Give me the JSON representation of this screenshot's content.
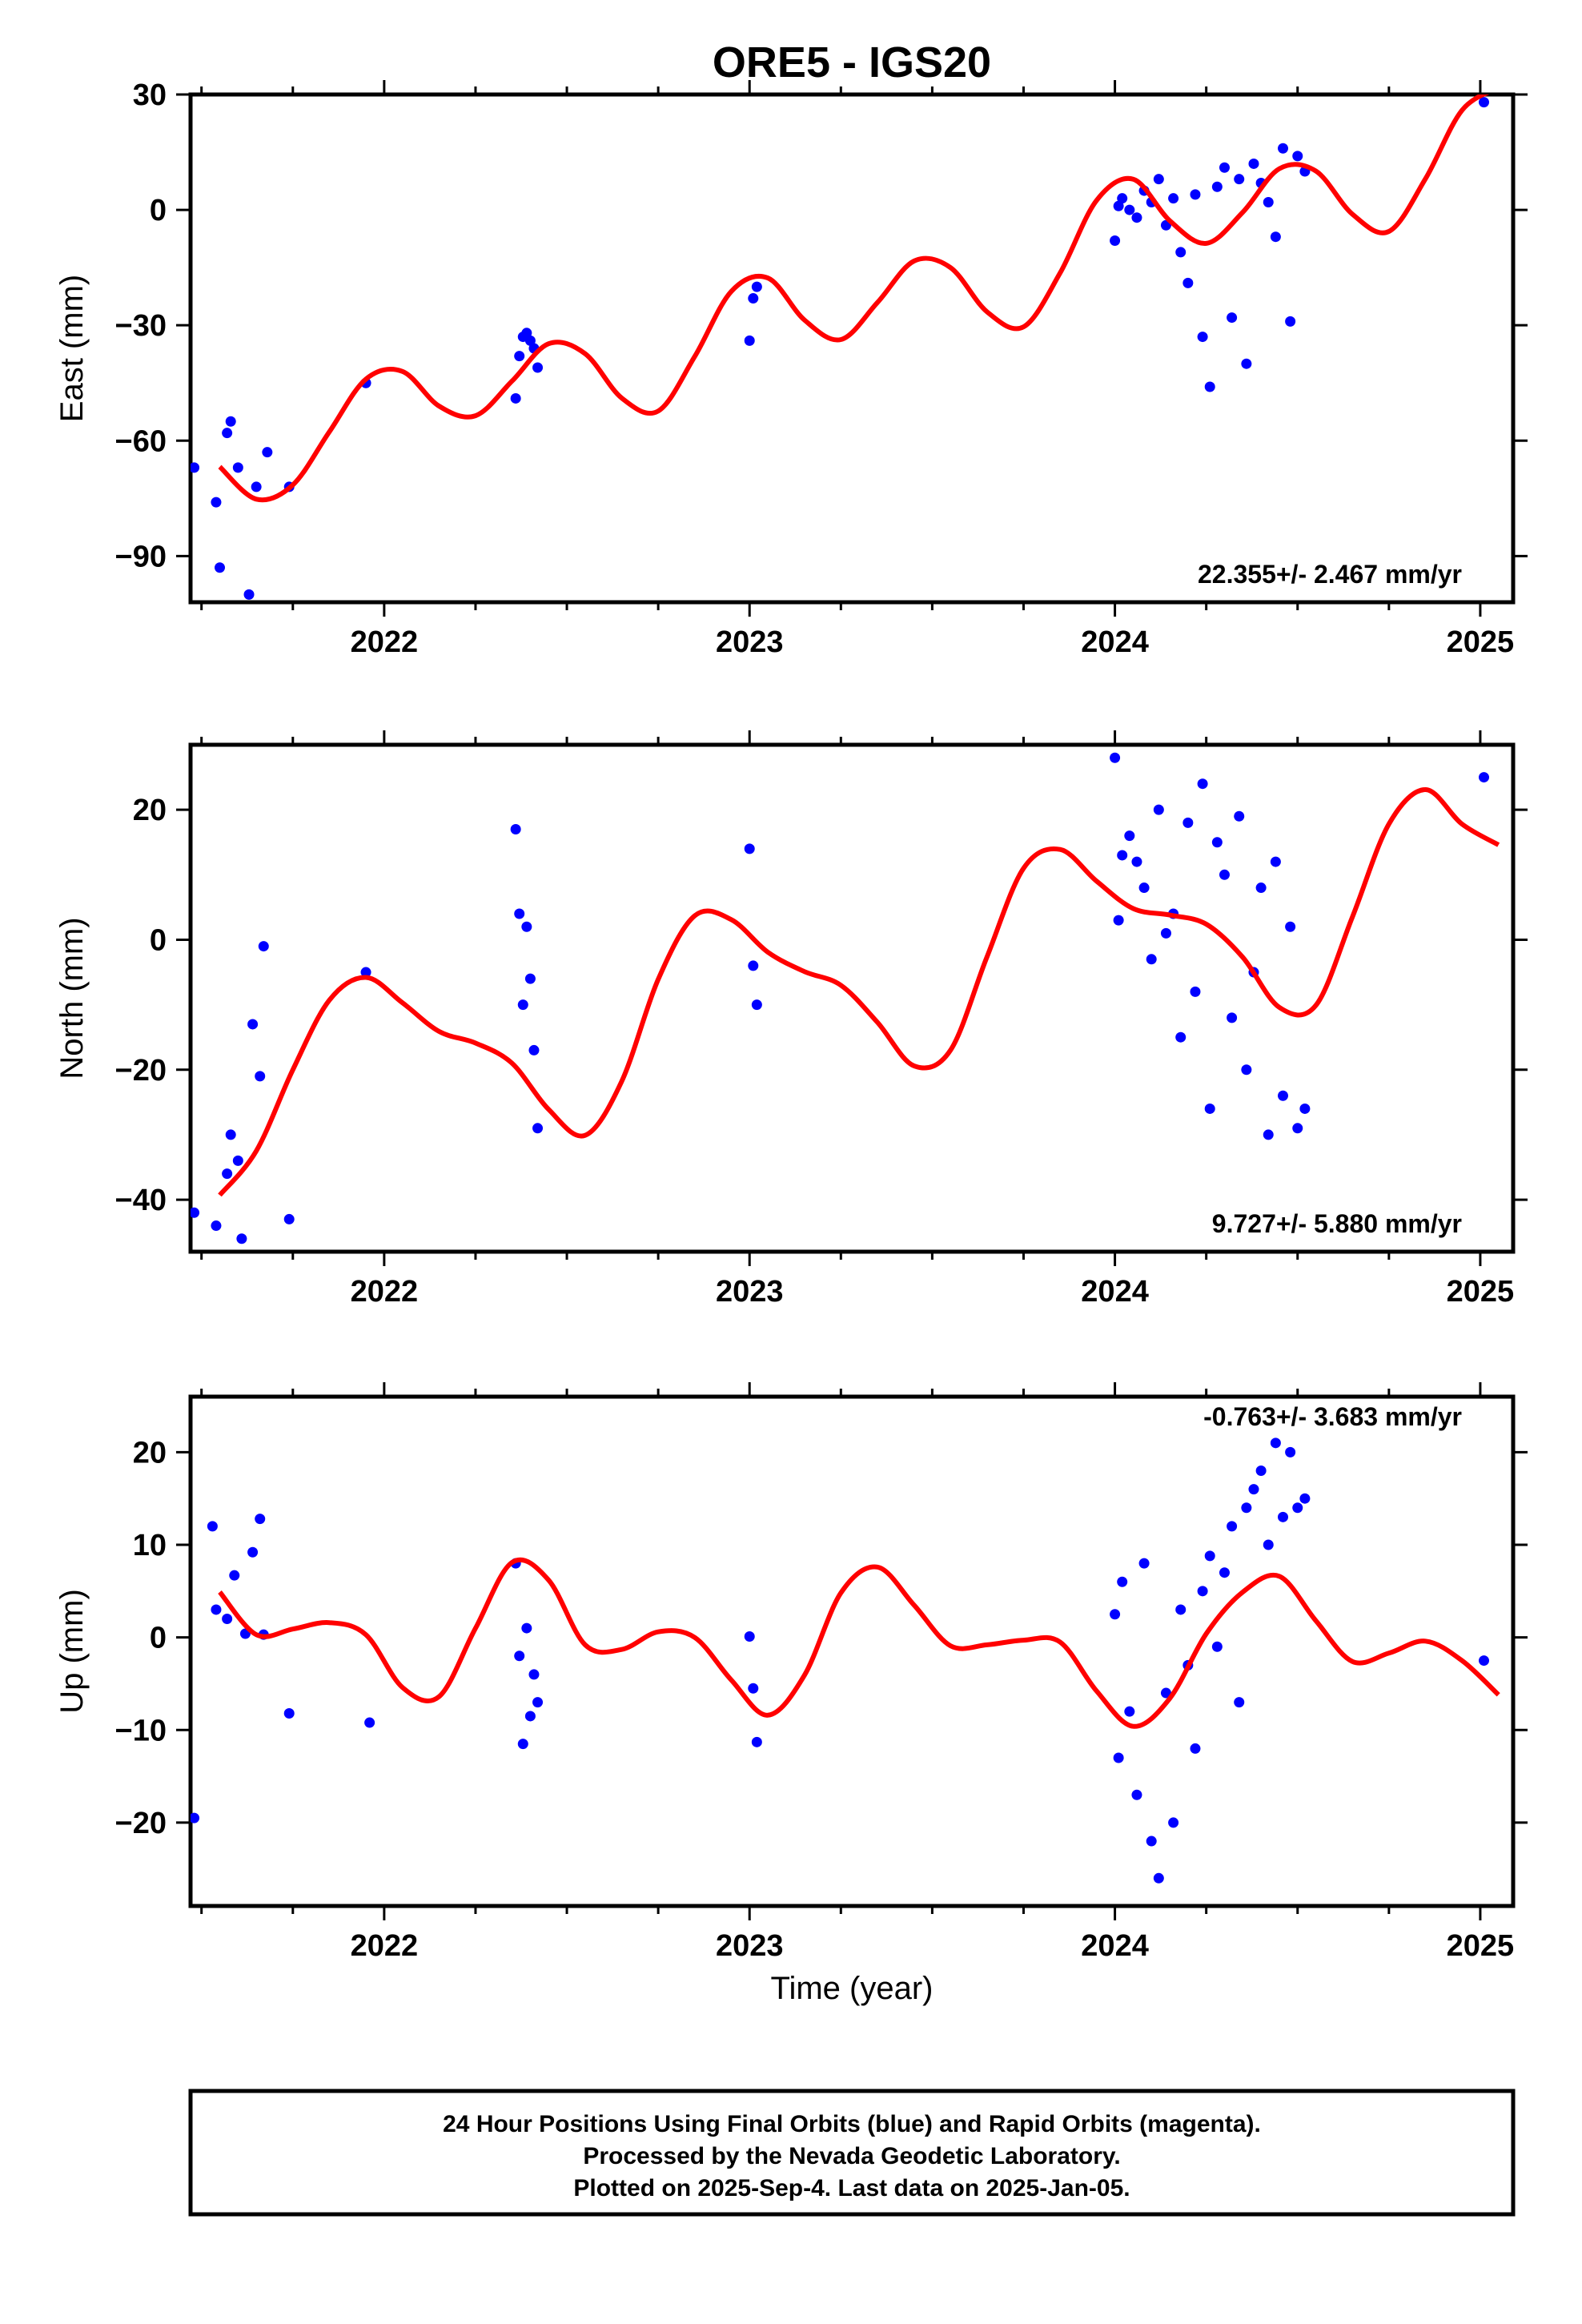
{
  "chart_data": {
    "type": "scatter",
    "title": "ORE5 - IGS20",
    "xlabel": "Time (year)",
    "xticks": [
      "2022",
      "2023",
      "2024",
      "2025"
    ],
    "xlim": [
      2021.47,
      2025.09
    ],
    "colors": {
      "points": "#0000ff",
      "model": "#ff0000"
    },
    "footer": [
      "24 Hour Positions Using Final Orbits (blue) and Rapid Orbits (magenta).",
      "Processed by the Nevada Geodetic Laboratory.",
      "Plotted on 2025-Sep-4. Last data on 2025-Jan-05."
    ],
    "panels": [
      {
        "name": "east",
        "ylabel": "East (mm)",
        "ylim": [
          -102,
          30
        ],
        "yticks": [
          30,
          0,
          -30,
          -60,
          -90
        ],
        "ytick_labels": [
          "30",
          "0",
          "−30",
          "−60",
          "−90"
        ],
        "rate_label": "22.355+/- 2.467 mm/yr",
        "rate_position": "bottom-right",
        "model": {
          "x": [
            2021.55,
            2021.65,
            2021.75,
            2021.85,
            2021.95,
            2022.05,
            2022.15,
            2022.25,
            2022.35,
            2022.45,
            2022.55,
            2022.65,
            2022.75,
            2022.85,
            2022.95,
            2023.05,
            2023.15,
            2023.25,
            2023.35,
            2023.45,
            2023.55,
            2023.65,
            2023.75,
            2023.85,
            2023.95,
            2024.05,
            2024.15,
            2024.25,
            2024.35,
            2024.45,
            2024.55,
            2024.65,
            2024.75,
            2024.85,
            2024.95,
            2025.05
          ],
          "y": [
            -66.8,
            -75.2,
            -71.5,
            -57.7,
            -44.0,
            -42.0,
            -51.0,
            -53.5,
            -44.5,
            -34.8,
            -37.4,
            -48.9,
            -52.3,
            -38.1,
            -21.2,
            -17.7,
            -28.6,
            -33.7,
            -24.1,
            -13.3,
            -15.0,
            -26.5,
            -30.4,
            -16.4,
            2.5,
            8.0,
            -2.8,
            -8.7,
            -0.6,
            10.7,
            10.1,
            -1.1,
            -5.6,
            8.1,
            25.9,
            31.7
          ]
        },
        "points": {
          "x": [
            2021.48,
            2021.54,
            2021.55,
            2021.57,
            2021.58,
            2021.6,
            2021.63,
            2021.65,
            2021.68,
            2021.74,
            2021.95,
            2022.36,
            2022.37,
            2022.38,
            2022.39,
            2022.4,
            2022.41,
            2022.42,
            2023.0,
            2023.01,
            2023.02,
            2024.0,
            2024.01,
            2024.02,
            2024.04,
            2024.06,
            2024.08,
            2024.1,
            2024.12,
            2024.14,
            2024.16,
            2024.18,
            2024.2,
            2024.22,
            2024.24,
            2024.26,
            2024.28,
            2024.3,
            2024.32,
            2024.34,
            2024.36,
            2024.38,
            2024.4,
            2024.42,
            2024.44,
            2024.46,
            2024.48,
            2024.5,
            2024.52,
            2025.01
          ],
          "y": [
            -67,
            -76,
            -93,
            -58,
            -55,
            -67,
            -100,
            -72,
            -63,
            -72,
            -45,
            -49,
            -38,
            -33,
            -32,
            -34,
            -36,
            -41,
            -34,
            -23,
            -20,
            -8,
            1,
            3,
            0,
            -2,
            5,
            2,
            8,
            -4,
            3,
            -11,
            -19,
            4,
            -33,
            -46,
            6,
            11,
            -28,
            8,
            -40,
            12,
            7,
            2,
            -7,
            16,
            -29,
            14,
            10,
            28
          ]
        }
      },
      {
        "name": "north",
        "ylabel": "North (mm)",
        "ylim": [
          -48,
          30
        ],
        "yticks": [
          20,
          0,
          -20,
          -40
        ],
        "ytick_labels": [
          "20",
          "0",
          "−20",
          "−40"
        ],
        "rate_label": "9.727+/- 5.880 mm/yr",
        "rate_position": "bottom-right",
        "model": {
          "x": [
            2021.55,
            2021.65,
            2021.75,
            2021.85,
            2021.95,
            2022.05,
            2022.15,
            2022.25,
            2022.35,
            2022.45,
            2022.55,
            2022.65,
            2022.75,
            2022.85,
            2022.95,
            2023.05,
            2023.15,
            2023.25,
            2023.35,
            2023.45,
            2023.55,
            2023.65,
            2023.75,
            2023.85,
            2023.95,
            2024.05,
            2024.15,
            2024.25,
            2024.35,
            2024.45,
            2024.55,
            2024.65,
            2024.75,
            2024.85,
            2024.95,
            2025.05
          ],
          "y": [
            -39.3,
            -32.5,
            -20.0,
            -9.3,
            -5.8,
            -9.7,
            -14.1,
            -15.9,
            -19.0,
            -26.1,
            -30.1,
            -21.8,
            -6.1,
            3.7,
            3.1,
            -1.9,
            -4.9,
            -7.0,
            -12.7,
            -19.4,
            -17.0,
            -2.6,
            11.0,
            13.9,
            9.0,
            4.8,
            3.8,
            2.4,
            -2.7,
            -10.4,
            -10.1,
            3.5,
            17.8,
            23.1,
            17.8,
            14.6
          ]
        },
        "points": {
          "x": [
            2021.48,
            2021.54,
            2021.57,
            2021.58,
            2021.6,
            2021.61,
            2021.64,
            2021.66,
            2021.67,
            2021.74,
            2021.95,
            2022.36,
            2022.37,
            2022.38,
            2022.39,
            2022.4,
            2022.41,
            2022.42,
            2023.0,
            2023.01,
            2023.02,
            2024.0,
            2024.01,
            2024.02,
            2024.04,
            2024.06,
            2024.08,
            2024.1,
            2024.12,
            2024.14,
            2024.16,
            2024.18,
            2024.2,
            2024.22,
            2024.24,
            2024.26,
            2024.28,
            2024.3,
            2024.32,
            2024.34,
            2024.36,
            2024.38,
            2024.4,
            2024.42,
            2024.44,
            2024.46,
            2024.48,
            2024.5,
            2024.52,
            2025.01
          ],
          "y": [
            -42,
            -44,
            -36,
            -30,
            -34,
            -46,
            -13,
            -21,
            -1,
            -43,
            -5,
            17,
            4,
            -10,
            2,
            -6,
            -17,
            -29,
            14,
            -4,
            -10,
            28,
            3,
            13,
            16,
            12,
            8,
            -3,
            20,
            1,
            4,
            -15,
            18,
            -8,
            24,
            -26,
            15,
            10,
            -12,
            19,
            -20,
            -5,
            8,
            -30,
            12,
            -24,
            2,
            -29,
            -26,
            25
          ]
        }
      },
      {
        "name": "up",
        "ylabel": "Up (mm)",
        "ylim": [
          -29,
          26
        ],
        "yticks": [
          20,
          10,
          0,
          -10,
          -20
        ],
        "ytick_labels": [
          "20",
          "10",
          "0",
          "−10",
          "−20"
        ],
        "rate_label": "-0.763+/- 3.683 mm/yr",
        "rate_position": "top-right",
        "model": {
          "x": [
            2021.55,
            2021.65,
            2021.75,
            2021.85,
            2021.95,
            2022.05,
            2022.15,
            2022.25,
            2022.35,
            2022.45,
            2022.55,
            2022.65,
            2022.75,
            2022.85,
            2022.95,
            2023.05,
            2023.15,
            2023.25,
            2023.35,
            2023.45,
            2023.55,
            2023.65,
            2023.75,
            2023.85,
            2023.95,
            2024.05,
            2024.15,
            2024.25,
            2024.35,
            2024.45,
            2024.55,
            2024.65,
            2024.75,
            2024.85,
            2024.95,
            2025.05
          ],
          "y": [
            4.9,
            0.3,
            0.9,
            1.6,
            0.3,
            -5.4,
            -6.4,
            1.0,
            8.1,
            6.2,
            -0.8,
            -1.3,
            0.6,
            0.0,
            -4.6,
            -8.4,
            -4.1,
            4.8,
            7.6,
            3.5,
            -0.9,
            -0.8,
            -0.3,
            -0.5,
            -5.8,
            -9.6,
            -6.6,
            0.4,
            4.9,
            6.6,
            1.8,
            -2.6,
            -1.7,
            -0.4,
            -2.5,
            -6.2
          ]
        },
        "points": {
          "x": [
            2021.48,
            2021.53,
            2021.54,
            2021.57,
            2021.59,
            2021.62,
            2021.64,
            2021.66,
            2021.67,
            2021.74,
            2021.96,
            2022.36,
            2022.37,
            2022.38,
            2022.39,
            2022.4,
            2022.41,
            2022.42,
            2023.0,
            2023.01,
            2023.02,
            2024.0,
            2024.01,
            2024.02,
            2024.04,
            2024.06,
            2024.08,
            2024.1,
            2024.12,
            2024.14,
            2024.16,
            2024.18,
            2024.2,
            2024.22,
            2024.24,
            2024.26,
            2024.28,
            2024.3,
            2024.32,
            2024.34,
            2024.36,
            2024.38,
            2024.4,
            2024.42,
            2024.44,
            2024.46,
            2024.48,
            2024.5,
            2024.52,
            2025.01
          ],
          "y": [
            -19.5,
            12.0,
            3.0,
            2.0,
            6.7,
            0.4,
            9.2,
            12.8,
            0.3,
            -8.2,
            -9.2,
            8.0,
            -2.0,
            -11.5,
            1.0,
            -8.5,
            -4.0,
            -7.0,
            0.1,
            -5.5,
            -11.3,
            2.5,
            -13.0,
            6.0,
            -8.0,
            -17.0,
            8.0,
            -22.0,
            -26.0,
            -6.0,
            -20.0,
            3.0,
            -3.0,
            -12.0,
            5.0,
            8.8,
            -1.0,
            7.0,
            12.0,
            -7.0,
            14.0,
            16.0,
            18.0,
            10.0,
            21.0,
            13.0,
            20.0,
            14.0,
            15.0,
            -2.5
          ]
        }
      }
    ]
  }
}
